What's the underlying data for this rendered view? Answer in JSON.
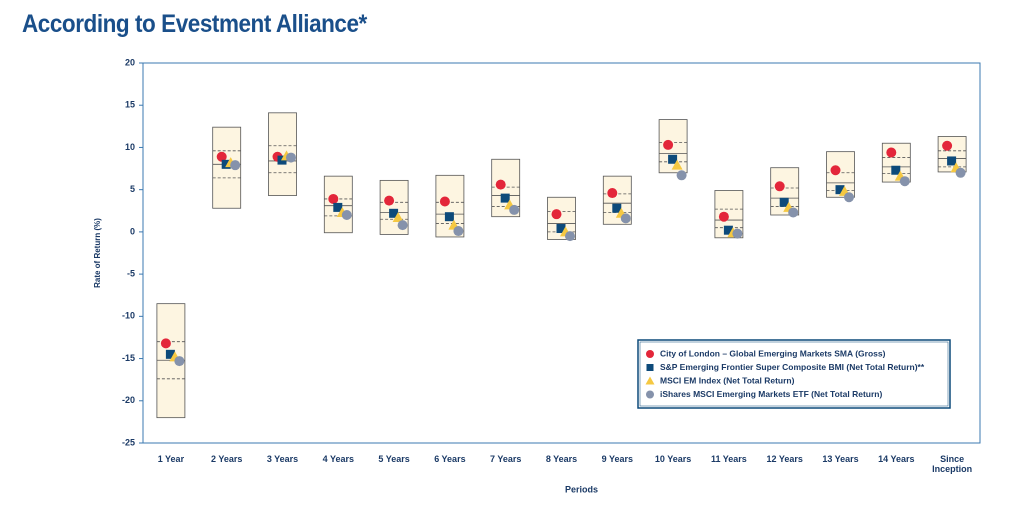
{
  "chart_data": {
    "type": "floating-box",
    "title": "According to Evestment Alliance*",
    "xlabel": "Periods",
    "ylabel": "Rate of Return (%)",
    "categories": [
      "1 Year",
      "2 Years",
      "3 Years",
      "4 Years",
      "5 Years",
      "6 Years",
      "7 Years",
      "8 Years",
      "9 Years",
      "10 Years",
      "11 Years",
      "12 Years",
      "13 Years",
      "14 Years",
      "Since Inception"
    ],
    "ylim": [
      -25,
      20
    ],
    "yticks": [
      -25,
      -20,
      -15,
      -10,
      -5,
      0,
      5,
      10,
      15,
      20
    ],
    "box_color": "#fdf5e1",
    "box": {
      "high": [
        -8.5,
        12.4,
        14.1,
        6.6,
        6.1,
        6.7,
        8.6,
        4.1,
        6.6,
        13.3,
        4.9,
        7.6,
        9.5,
        10.5,
        11.3
      ],
      "upper_quartile": [
        -13.0,
        9.6,
        10.2,
        3.9,
        3.5,
        3.5,
        5.3,
        2.4,
        4.5,
        10.6,
        2.7,
        5.2,
        7.0,
        8.8,
        9.6
      ],
      "median": [
        -15.2,
        8.0,
        8.4,
        3.1,
        2.3,
        2.1,
        4.3,
        1.0,
        3.4,
        9.3,
        1.4,
        4.0,
        5.8,
        7.7,
        8.7
      ],
      "lower_quartile": [
        -17.4,
        6.4,
        7.0,
        1.9,
        1.5,
        1.0,
        3.0,
        0.0,
        2.3,
        8.3,
        0.5,
        3.0,
        4.9,
        6.9,
        7.7
      ],
      "low": [
        -22.0,
        2.8,
        4.3,
        -0.1,
        -0.3,
        -0.6,
        1.8,
        -0.9,
        0.9,
        7.0,
        -0.7,
        2.0,
        4.1,
        5.9,
        7.1
      ]
    },
    "series": [
      {
        "name": "City of London – Global Emerging Markets SMA (Gross)",
        "color": "#e3263a",
        "marker": "circle",
        "values": [
          -13.2,
          8.9,
          8.9,
          3.9,
          3.7,
          3.6,
          5.6,
          2.1,
          4.6,
          10.3,
          1.8,
          5.4,
          7.3,
          9.4,
          10.2
        ]
      },
      {
        "name": "S&P Emerging Frontier Super Composite BMI (Net Total Return)**",
        "color": "#0d4a7a",
        "marker": "square",
        "values": [
          -14.5,
          8.0,
          8.5,
          2.9,
          2.2,
          1.8,
          4.0,
          0.4,
          2.8,
          8.6,
          0.2,
          3.5,
          5.0,
          7.3,
          8.4
        ]
      },
      {
        "name": "MSCI EM Index (Net Total Return)",
        "color": "#f5c842",
        "marker": "triangle",
        "values": [
          -14.8,
          8.2,
          9.0,
          2.3,
          1.7,
          0.8,
          3.2,
          0.0,
          2.2,
          7.9,
          -0.1,
          2.9,
          4.8,
          6.6,
          7.6
        ]
      },
      {
        "name": "iShares MSCI Emerging Markets ETF (Net Total Return)",
        "color": "#8592ab",
        "marker": "circle",
        "values": [
          -15.3,
          7.9,
          8.8,
          2.0,
          0.8,
          0.1,
          2.6,
          -0.5,
          1.6,
          6.7,
          -0.2,
          2.3,
          4.1,
          6.0,
          7.0
        ]
      }
    ],
    "legend": "lower right"
  }
}
